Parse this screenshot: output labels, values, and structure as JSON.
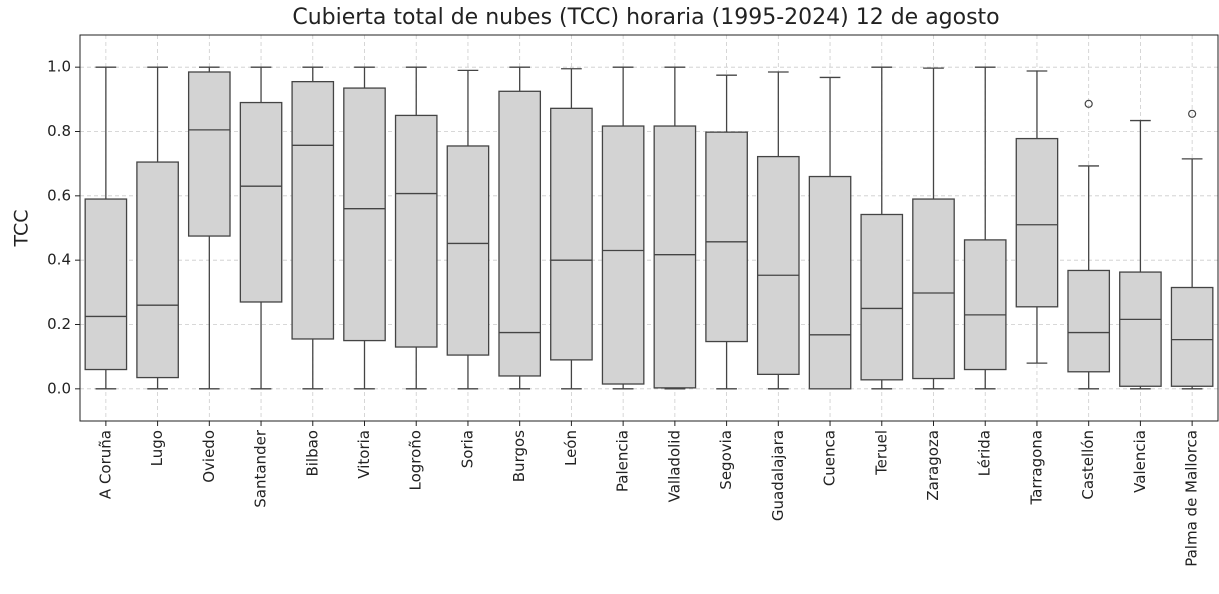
{
  "chart_data": {
    "type": "box",
    "title": "Cubierta total de nubes (TCC) horaria (1995-2024) 12 de agosto",
    "y_label": "TCC",
    "categories": [
      "A Coruña",
      "Lugo",
      "Oviedo",
      "Santander",
      "Bilbao",
      "Vitoria",
      "Logroño",
      "Soria",
      "Burgos",
      "León",
      "Palencia",
      "Valladolid",
      "Segovia",
      "Guadalajara",
      "Cuenca",
      "Teruel",
      "Zaragoza",
      "Lérida",
      "Tarragona",
      "Castellón",
      "Valencia",
      "Palma de Mallorca"
    ],
    "whislo": [
      0,
      0,
      0,
      0,
      0,
      0,
      0,
      0,
      0,
      0,
      0,
      0,
      0,
      0,
      0,
      0,
      0,
      0,
      0.08,
      0,
      0,
      0
    ],
    "q1": [
      0.06,
      0.035,
      0.475,
      0.27,
      0.155,
      0.15,
      0.13,
      0.105,
      0.04,
      0.09,
      0.015,
      0.003,
      0.147,
      0.045,
      0,
      0.028,
      0.032,
      0.06,
      0.255,
      0.053,
      0.008,
      0.008
    ],
    "med": [
      0.225,
      0.26,
      0.805,
      0.63,
      0.757,
      0.56,
      0.607,
      0.452,
      0.175,
      0.4,
      0.43,
      0.417,
      0.457,
      0.353,
      0.168,
      0.25,
      0.298,
      0.23,
      0.51,
      0.175,
      0.216,
      0.153
    ],
    "q3": [
      0.59,
      0.705,
      0.985,
      0.89,
      0.955,
      0.935,
      0.85,
      0.755,
      0.925,
      0.872,
      0.817,
      0.817,
      0.798,
      0.722,
      0.66,
      0.542,
      0.59,
      0.463,
      0.778,
      0.368,
      0.363,
      0.315
    ],
    "whishi": [
      1,
      1,
      1,
      1,
      1,
      1,
      1,
      0.99,
      1,
      0.995,
      1,
      1,
      0.975,
      0.985,
      0.968,
      1,
      0.997,
      1,
      0.988,
      0.693,
      0.834,
      0.715
    ],
    "fliers": [
      [],
      [],
      [],
      [],
      [],
      [],
      [],
      [],
      [],
      [],
      [],
      [],
      [],
      [],
      [],
      [],
      [],
      [],
      [],
      [
        0.886
      ],
      [],
      [
        0.855
      ]
    ],
    "color": "#d3d3d3",
    "ylim": [
      -0.1,
      1.1
    ],
    "yticks": [
      {
        "value": 0,
        "label": "0.0"
      },
      0.2,
      0.4,
      0.6,
      0.8,
      {
        "value": 1,
        "label": "1.0"
      }
    ],
    "grid": true
  }
}
